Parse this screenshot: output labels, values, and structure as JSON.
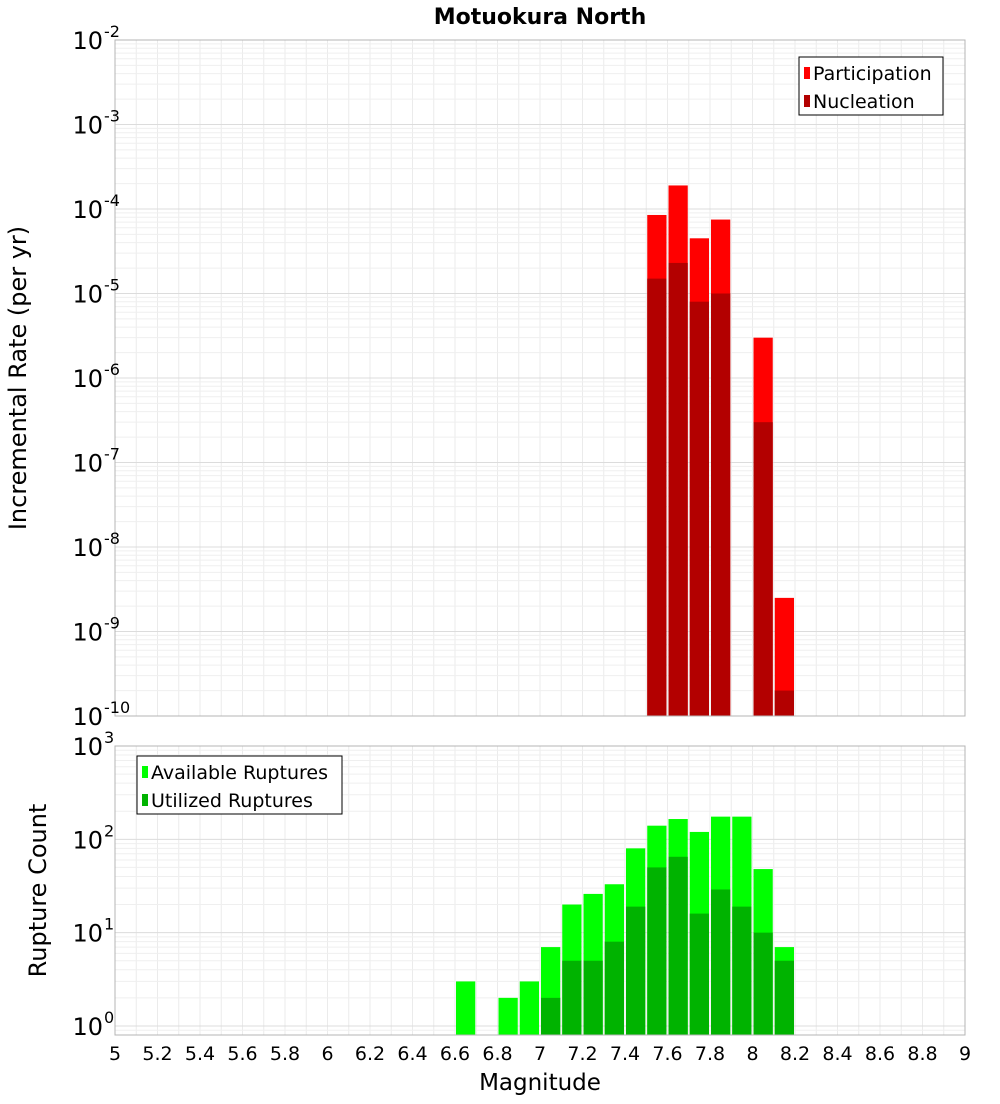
{
  "chart_data": [
    {
      "type": "bar",
      "title": "Motuokura North",
      "xlabel": "",
      "ylabel": "Incremental Rate (per yr)",
      "xlim": [
        5,
        9
      ],
      "ylim": [
        1e-10,
        0.01
      ],
      "yscale": "log",
      "grid": true,
      "legend_position": "top-right",
      "y_tick_labels": [
        {
          "base": "10",
          "exp": "-10"
        },
        {
          "base": "10",
          "exp": "-9"
        },
        {
          "base": "10",
          "exp": "-8"
        },
        {
          "base": "10",
          "exp": "-7"
        },
        {
          "base": "10",
          "exp": "-6"
        },
        {
          "base": "10",
          "exp": "-5"
        },
        {
          "base": "10",
          "exp": "-4"
        },
        {
          "base": "10",
          "exp": "-3"
        },
        {
          "base": "10",
          "exp": "-2"
        }
      ],
      "series": [
        {
          "name": "Participation",
          "color": "#ff0000",
          "x": [
            7.55,
            7.65,
            7.75,
            7.85,
            8.05,
            8.15
          ],
          "values": [
            8.5e-05,
            0.00019,
            4.5e-05,
            7.5e-05,
            3e-06,
            2.5e-09
          ]
        },
        {
          "name": "Nucleation",
          "color": "#b30000",
          "x": [
            7.55,
            7.65,
            7.75,
            7.85,
            8.05,
            8.15
          ],
          "values": [
            1.5e-05,
            2.3e-05,
            8e-06,
            1e-05,
            3e-07,
            2e-10
          ]
        }
      ]
    },
    {
      "type": "bar",
      "title": "",
      "xlabel": "Magnitude",
      "ylabel": "Rupture Count",
      "xlim": [
        5,
        9
      ],
      "ylim": [
        0.8,
        1000
      ],
      "yscale": "log",
      "grid": true,
      "legend_position": "top-left",
      "x_tick_labels": [
        "5",
        "5.2",
        "5.4",
        "5.6",
        "5.8",
        "6",
        "6.2",
        "6.4",
        "6.6",
        "6.8",
        "7",
        "7.2",
        "7.4",
        "7.6",
        "7.8",
        "8",
        "8.2",
        "8.4",
        "8.6",
        "8.8",
        "9"
      ],
      "y_tick_labels": [
        {
          "base": "10",
          "exp": "0"
        },
        {
          "base": "10",
          "exp": "1"
        },
        {
          "base": "10",
          "exp": "2"
        },
        {
          "base": "10",
          "exp": "3"
        }
      ],
      "series": [
        {
          "name": "Available Ruptures",
          "color": "#00ff00",
          "x": [
            6.65,
            6.85,
            6.95,
            7.05,
            7.15,
            7.25,
            7.35,
            7.45,
            7.55,
            7.65,
            7.75,
            7.85,
            7.95,
            8.05,
            8.15
          ],
          "values": [
            3,
            2,
            3,
            7,
            20,
            26,
            33,
            80,
            140,
            165,
            120,
            175,
            175,
            48,
            7
          ]
        },
        {
          "name": "Utilized Ruptures",
          "color": "#00b300",
          "x": [
            7.05,
            7.15,
            7.25,
            7.35,
            7.45,
            7.55,
            7.65,
            7.75,
            7.85,
            7.95,
            8.05,
            8.15
          ],
          "values": [
            2,
            5,
            5,
            8,
            19,
            50,
            65,
            16,
            29,
            19,
            10,
            5
          ]
        }
      ]
    }
  ]
}
